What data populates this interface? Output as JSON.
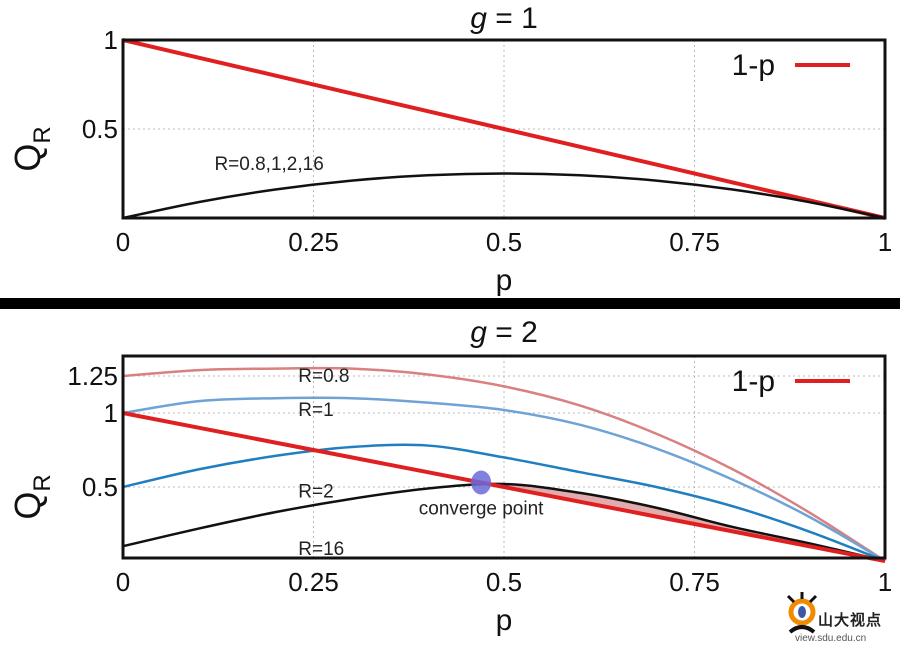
{
  "chart_data": [
    {
      "type": "line",
      "title": "g = 1",
      "title_var": "g",
      "title_rest": " = 1",
      "xlabel": "p",
      "ylabel": "Q",
      "ylabel_sub": "R",
      "xlim": [
        0,
        1
      ],
      "ylim": [
        0,
        1
      ],
      "xticks": [
        "0",
        "0.25",
        "0.5",
        "0.75",
        "1"
      ],
      "yticks": [
        {
          "v": 0.5,
          "t": "0.5"
        },
        {
          "v": 1,
          "t": "1"
        }
      ],
      "grid": true,
      "legend": {
        "position": "top-right",
        "entries": [
          "1-p"
        ]
      },
      "x": [
        0,
        0.1,
        0.2,
        0.3,
        0.4,
        0.5,
        0.6,
        0.7,
        0.8,
        0.9,
        1
      ],
      "series": [
        {
          "name": "1-p",
          "color": "#e02020",
          "values": [
            1,
            0.9,
            0.8,
            0.7,
            0.6,
            0.5,
            0.4,
            0.3,
            0.2,
            0.1,
            0
          ]
        },
        {
          "name": "R=0.8,1,2,16",
          "color": "#111111",
          "values": [
            0,
            0.09,
            0.16,
            0.21,
            0.24,
            0.25,
            0.24,
            0.21,
            0.16,
            0.09,
            0
          ]
        }
      ],
      "annotations": [
        {
          "text": "R=0.8,1,2,16",
          "x": 0.12,
          "y": 0.27
        }
      ]
    },
    {
      "type": "line",
      "title": "g = 2",
      "title_var": "g",
      "title_rest": " = 2",
      "xlabel": "p",
      "ylabel": "Q",
      "ylabel_sub": "R",
      "xlim": [
        0,
        1
      ],
      "ylim": [
        0,
        1.38
      ],
      "xticks": [
        "0",
        "0.25",
        "0.5",
        "0.75",
        "1"
      ],
      "yticks": [
        {
          "v": 0.5,
          "t": "0.5"
        },
        {
          "v": 1,
          "t": "1"
        },
        {
          "v": 1.25,
          "t": "1.25"
        }
      ],
      "grid": true,
      "legend": {
        "position": "top-right",
        "entries": [
          "1-p"
        ]
      },
      "x": [
        0,
        0.1,
        0.2,
        0.3,
        0.4,
        0.5,
        0.6,
        0.7,
        0.8,
        0.9,
        1
      ],
      "series": [
        {
          "name": "R=0.8",
          "color": "#d98080",
          "values": [
            1.25,
            1.29,
            1.3,
            1.3,
            1.26,
            1.18,
            1.05,
            0.86,
            0.62,
            0.33,
            0
          ]
        },
        {
          "name": "R=1",
          "color": "#6fa3d6",
          "values": [
            1.0,
            1.08,
            1.1,
            1.1,
            1.07,
            1.02,
            0.92,
            0.76,
            0.55,
            0.3,
            0
          ]
        },
        {
          "name": "R=2",
          "color": "#1f7fc0",
          "values": [
            0.5,
            0.62,
            0.71,
            0.77,
            0.78,
            0.7,
            0.6,
            0.5,
            0.37,
            0.2,
            0
          ]
        },
        {
          "name": "R=16",
          "color": "#111111",
          "values": [
            0.1,
            0.22,
            0.33,
            0.42,
            0.49,
            0.52,
            0.46,
            0.36,
            0.23,
            0.12,
            0
          ]
        },
        {
          "name": "1-p",
          "color": "#e02020",
          "values": [
            1,
            0.9,
            0.8,
            0.7,
            0.6,
            0.5,
            0.4,
            0.3,
            0.2,
            0.1,
            0
          ]
        }
      ],
      "labels": [
        {
          "text": "R=0.8",
          "x": 0.23,
          "y": 1.21
        },
        {
          "text": "R=1",
          "x": 0.23,
          "y": 0.98
        },
        {
          "text": "R=2",
          "x": 0.23,
          "y": 0.43
        },
        {
          "text": "R=16",
          "x": 0.23,
          "y": 0.04
        }
      ],
      "converge_point": {
        "text": "converge point",
        "x": 0.47,
        "y": 0.53
      },
      "shaded_region": {
        "between": [
          "R=16",
          "1-p"
        ],
        "from": 0.48,
        "to": 1,
        "color": "#d99090"
      }
    }
  ],
  "watermark": {
    "name": "山大视点",
    "url": "view.sdu.edu.cn"
  }
}
